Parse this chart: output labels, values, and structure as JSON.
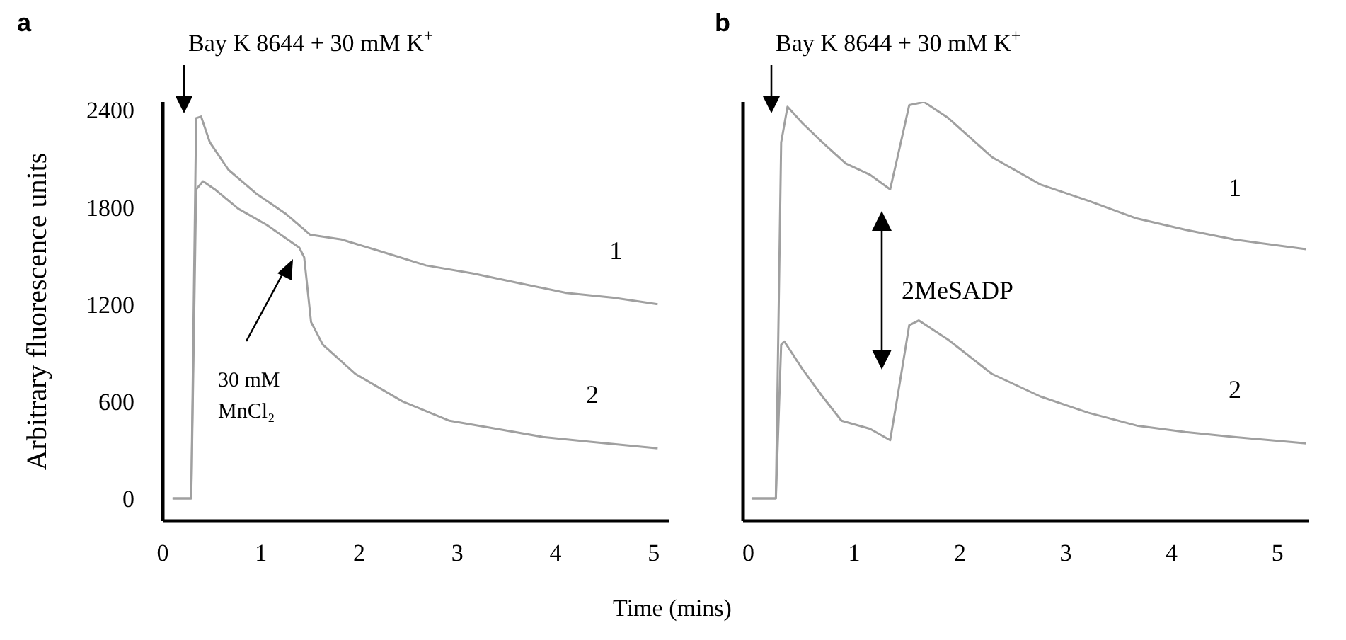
{
  "chart_data": [
    {
      "type": "line",
      "title": "a",
      "ylabel": "Arbitrary fluorescence units",
      "xlabel": "Time (mins)",
      "xlim": [
        0,
        5.16
      ],
      "xticks": [
        0,
        1,
        2,
        3,
        4,
        5
      ],
      "ylim": [
        -140,
        2450
      ],
      "yticks": [
        0,
        600,
        1200,
        1800,
        2400
      ],
      "grid": false,
      "legend": false,
      "marker": "none",
      "line_style": "solid",
      "annotations": [
        "Bay K 8644 + 30 mM K$^{+}$",
        "30 mM MnCl₂"
      ],
      "series": [
        {
          "name": "1",
          "color": "#a0a0a0",
          "x": [
            0.1,
            0.29,
            0.34,
            0.39,
            0.48,
            0.67,
            0.96,
            1.25,
            1.5,
            1.82,
            2.2,
            2.68,
            3.16,
            3.63,
            4.11,
            4.59,
            5.04
          ],
          "values": [
            0,
            0,
            2350,
            2360,
            2200,
            2030,
            1880,
            1760,
            1630,
            1600,
            1530,
            1440,
            1390,
            1330,
            1270,
            1240,
            1200
          ]
        },
        {
          "name": "2",
          "color": "#a0a0a0",
          "x": [
            0.1,
            0.29,
            0.34,
            0.41,
            0.53,
            0.77,
            1.06,
            1.39,
            1.44,
            1.51,
            1.63,
            1.96,
            2.44,
            2.92,
            3.4,
            3.87,
            4.35,
            5.04
          ],
          "values": [
            0,
            0,
            1910,
            1960,
            1910,
            1790,
            1690,
            1550,
            1490,
            1090,
            950,
            770,
            600,
            480,
            430,
            380,
            350,
            310
          ]
        }
      ]
    },
    {
      "type": "line",
      "title": "b",
      "xlim": [
        -0.05,
        5.3
      ],
      "xticks": [
        0,
        1,
        2,
        3,
        4,
        5
      ],
      "ylim": [
        -140,
        2450
      ],
      "tick_labels": "x",
      "grid": false,
      "legend": false,
      "marker": "none",
      "line_style": "solid",
      "annotations": [
        "Bay K 8644 + 30 mM K$^{+}$",
        "2MeSADP"
      ],
      "series": [
        {
          "name": "1",
          "color": "#a0a0a0",
          "x": [
            0.03,
            0.26,
            0.31,
            0.37,
            0.51,
            0.7,
            0.92,
            1.15,
            1.34,
            1.41,
            1.52,
            1.66,
            1.89,
            2.3,
            2.76,
            3.21,
            3.67,
            4.13,
            4.59,
            5.27
          ],
          "values": [
            0,
            0,
            2200,
            2420,
            2320,
            2200,
            2070,
            2000,
            1910,
            2110,
            2430,
            2450,
            2350,
            2110,
            1940,
            1840,
            1730,
            1660,
            1600,
            1540
          ]
        },
        {
          "name": "2",
          "color": "#a0a0a0",
          "x": [
            0.03,
            0.26,
            0.31,
            0.34,
            0.51,
            0.7,
            0.88,
            1.15,
            1.34,
            1.41,
            1.52,
            1.61,
            1.89,
            2.3,
            2.76,
            3.21,
            3.67,
            4.13,
            4.59,
            5.27
          ],
          "values": [
            0,
            0,
            950,
            970,
            800,
            630,
            480,
            430,
            360,
            630,
            1070,
            1100,
            980,
            770,
            630,
            530,
            450,
            410,
            380,
            340
          ]
        }
      ]
    }
  ]
}
